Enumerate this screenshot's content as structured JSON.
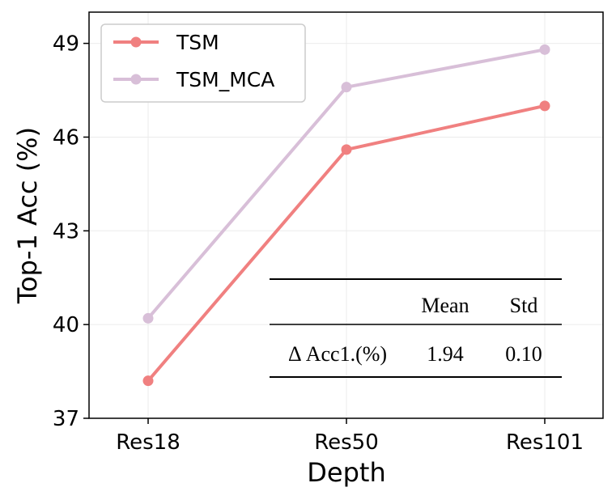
{
  "chart_data": {
    "type": "line",
    "title": "",
    "xlabel": "Depth",
    "ylabel": "Top-1 Acc (%)",
    "categories": [
      "Res18",
      "Res50",
      "Res101"
    ],
    "yticks": [
      37,
      40,
      43,
      46,
      49
    ],
    "ylim": [
      37,
      50
    ],
    "grid": true,
    "legend_position": "top-left",
    "series": [
      {
        "name": "TSM",
        "color": "#f08080",
        "values": [
          38.2,
          45.6,
          47.0
        ]
      },
      {
        "name": "TSM_MCA",
        "color": "#d8bfd8",
        "values": [
          40.2,
          47.6,
          48.8
        ]
      }
    ],
    "table": {
      "headers": [
        "",
        "Mean",
        "Std"
      ],
      "rows": [
        [
          "Δ Acc1.(%)",
          "1.94",
          "0.10"
        ]
      ]
    }
  }
}
